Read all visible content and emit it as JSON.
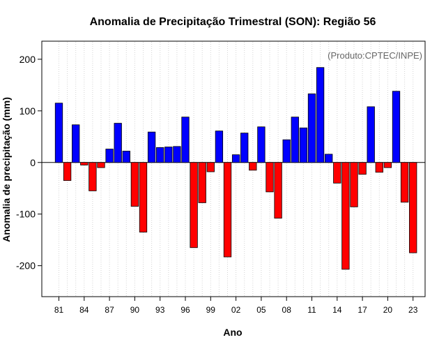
{
  "chart_data": {
    "type": "bar",
    "title": "Anomalia de Precipitação Trimestral (SON): Região 56",
    "xlabel": "Ano",
    "ylabel": "Anomalia de precipitação (mm)",
    "annotation": "(Produto:CPTEC/INPE)",
    "ylim": [
      -260,
      235
    ],
    "yticks": [
      -200,
      -100,
      0,
      100,
      200
    ],
    "xtick_labels": [
      "81",
      "84",
      "87",
      "90",
      "93",
      "96",
      "99",
      "02",
      "05",
      "08",
      "11",
      "14",
      "17",
      "20",
      "23"
    ],
    "positive_color": "#0000ff",
    "negative_color": "#ff0000",
    "grid": true,
    "categories": [
      "1981",
      "1982",
      "1983",
      "1984",
      "1985",
      "1986",
      "1987",
      "1988",
      "1989",
      "1990",
      "1991",
      "1992",
      "1993",
      "1994",
      "1995",
      "1996",
      "1997",
      "1998",
      "1999",
      "2000",
      "2001",
      "2002",
      "2003",
      "2004",
      "2005",
      "2006",
      "2007",
      "2008",
      "2009",
      "2010",
      "2011",
      "2012",
      "2013",
      "2014",
      "2015",
      "2016",
      "2017",
      "2018",
      "2019",
      "2020",
      "2021",
      "2022",
      "2023"
    ],
    "values": [
      115,
      -35,
      73,
      -5,
      -55,
      -10,
      26,
      76,
      22,
      -85,
      -135,
      59,
      29,
      30,
      31,
      88,
      -165,
      -78,
      -18,
      61,
      -183,
      15,
      57,
      -15,
      69,
      -57,
      -108,
      44,
      88,
      67,
      133,
      184,
      16,
      -40,
      -207,
      -86,
      -23,
      108,
      -19,
      -10,
      138,
      -77,
      -175
    ]
  }
}
